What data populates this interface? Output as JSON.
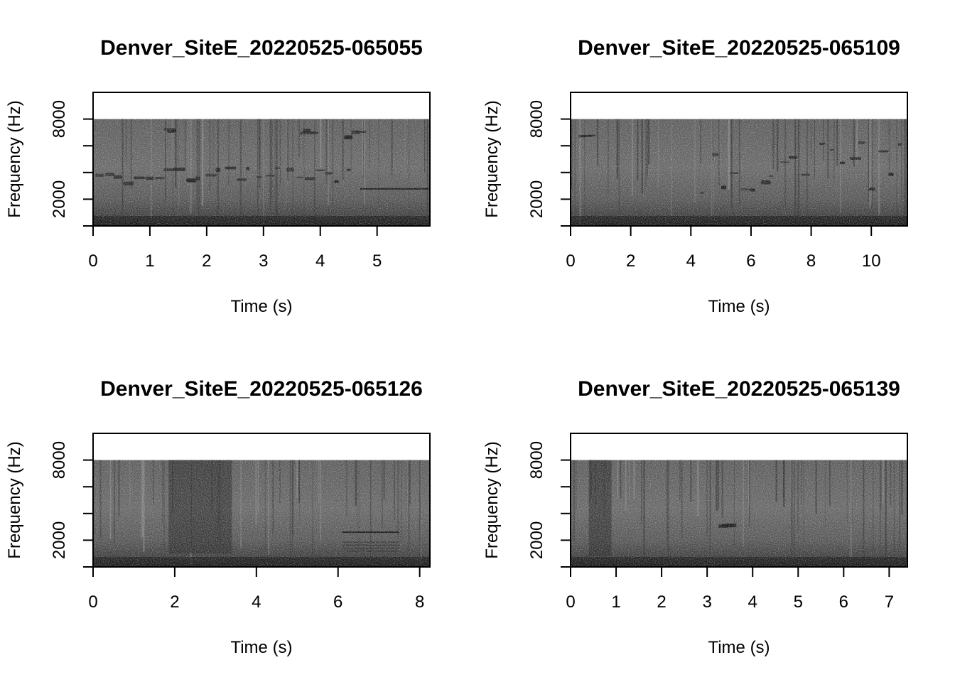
{
  "chart_data": [
    {
      "type": "heatmap",
      "subtype": "spectrogram",
      "title": "Denver_SiteE_20220525-065055",
      "xlabel": "Time (s)",
      "ylabel": "Frequency (Hz)",
      "xlim": [
        0,
        5.93
      ],
      "ylim": [
        0,
        10000
      ],
      "data_top_hz": 8000,
      "xticks": [
        0,
        1,
        2,
        3,
        4,
        5
      ],
      "yticks": [
        0,
        2000,
        4000,
        6000,
        8000
      ],
      "ytick_labels": [
        "",
        "2000",
        "",
        "",
        "8000"
      ],
      "colormap": "grayscale",
      "events": [
        {
          "t0": 0.0,
          "t1": 4.6,
          "f0": 3300,
          "f1": 4500,
          "kind": "note"
        },
        {
          "t0": 1.2,
          "t1": 1.45,
          "f0": 7000,
          "f1": 7500,
          "kind": "note"
        },
        {
          "t0": 3.6,
          "t1": 3.8,
          "f0": 7000,
          "f1": 7400,
          "kind": "note"
        },
        {
          "t0": 4.4,
          "t1": 4.7,
          "f0": 6700,
          "f1": 7200,
          "kind": "note"
        },
        {
          "t0": 4.7,
          "t1": 5.93,
          "f0": 2700,
          "f1": 2850,
          "kind": "tone"
        }
      ]
    },
    {
      "type": "heatmap",
      "subtype": "spectrogram",
      "title": "Denver_SiteE_20220525-065109",
      "xlabel": "Time (s)",
      "ylabel": "Frequency (Hz)",
      "xlim": [
        0,
        11.2
      ],
      "ylim": [
        0,
        10000
      ],
      "data_top_hz": 8000,
      "xticks": [
        0,
        2,
        4,
        6,
        8,
        10
      ],
      "yticks": [
        0,
        2000,
        4000,
        6000,
        8000
      ],
      "ytick_labels": [
        "",
        "2000",
        "",
        "",
        "8000"
      ],
      "colormap": "grayscale",
      "events": [
        {
          "t0": 0.2,
          "t1": 0.6,
          "f0": 6600,
          "f1": 7100,
          "kind": "note"
        },
        {
          "t0": 4.3,
          "t1": 7.9,
          "f0": 2300,
          "f1": 5500,
          "kind": "song"
        },
        {
          "t0": 8.2,
          "t1": 11.2,
          "f0": 2400,
          "f1": 7000,
          "kind": "song"
        }
      ]
    },
    {
      "type": "heatmap",
      "subtype": "spectrogram",
      "title": "Denver_SiteE_20220525-065126",
      "xlabel": "Time (s)",
      "ylabel": "Frequency (Hz)",
      "xlim": [
        0,
        8.25
      ],
      "ylim": [
        0,
        10000
      ],
      "data_top_hz": 8000,
      "xticks": [
        0,
        2,
        4,
        6,
        8
      ],
      "yticks": [
        0,
        2000,
        4000,
        6000,
        8000
      ],
      "ytick_labels": [
        "",
        "2000",
        "",
        "",
        "8000"
      ],
      "colormap": "grayscale",
      "events": [
        {
          "t0": 1.85,
          "t1": 3.4,
          "f0": 1000,
          "f1": 8000,
          "kind": "broadband"
        },
        {
          "t0": 6.1,
          "t1": 7.5,
          "f0": 2500,
          "f1": 2700,
          "kind": "tone"
        },
        {
          "t0": 6.1,
          "t1": 7.5,
          "f0": 1100,
          "f1": 2000,
          "kind": "noise"
        }
      ]
    },
    {
      "type": "heatmap",
      "subtype": "spectrogram",
      "title": "Denver_SiteE_20220525-065139",
      "xlabel": "Time (s)",
      "ylabel": "Frequency (Hz)",
      "xlim": [
        0,
        7.4
      ],
      "ylim": [
        0,
        10000
      ],
      "data_top_hz": 8000,
      "xticks": [
        0,
        1,
        2,
        3,
        4,
        5,
        6,
        7
      ],
      "yticks": [
        0,
        2000,
        4000,
        6000,
        8000
      ],
      "ytick_labels": [
        "",
        "2000",
        "",
        "",
        "8000"
      ],
      "colormap": "grayscale",
      "events": [
        {
          "t0": 0.4,
          "t1": 0.9,
          "f0": 800,
          "f1": 8000,
          "kind": "broadband"
        },
        {
          "t0": 3.2,
          "t1": 3.45,
          "f0": 3100,
          "f1": 3300,
          "kind": "note"
        }
      ]
    }
  ]
}
